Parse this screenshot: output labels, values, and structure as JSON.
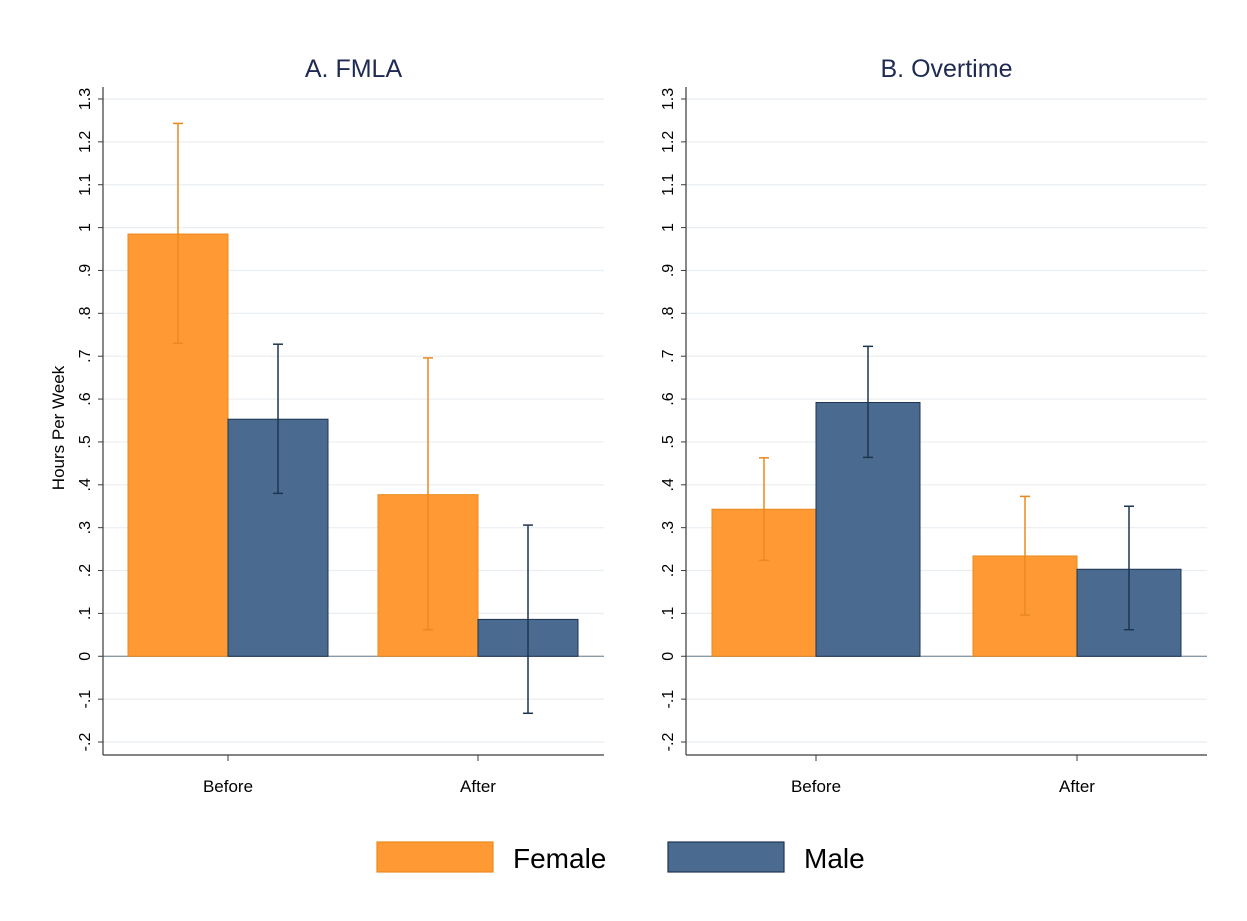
{
  "colors": {
    "female": "#ff9933",
    "female_edge": "#e88a1e",
    "male": "#4a6b8f",
    "male_edge": "#1e3550",
    "grid": "#e8eef2",
    "axis": "#3a3a3a",
    "title": "#1e2a52"
  },
  "y_axis_label": "Hours Per Week",
  "legend": [
    {
      "label": "Female",
      "series": "female"
    },
    {
      "label": "Male",
      "series": "male"
    }
  ],
  "chart_data": [
    {
      "type": "bar",
      "title": "A. FMLA",
      "categories": [
        "Before",
        "After"
      ],
      "ylabel": "Hours Per Week",
      "ylim": [
        -0.2,
        1.3
      ],
      "yticks": [
        "-.2",
        "-.1",
        "0",
        ".1",
        ".2",
        ".3",
        ".4",
        ".5",
        ".6",
        ".7",
        ".8",
        ".9",
        "1",
        "1.1",
        "1.2",
        "1.3"
      ],
      "grid": true,
      "legend_position": "bottom",
      "series": [
        {
          "name": "Female",
          "values": [
            0.985,
            0.377
          ],
          "ci_low": [
            0.73,
            0.062
          ],
          "ci_high": [
            1.243,
            0.696
          ]
        },
        {
          "name": "Male",
          "values": [
            0.553,
            0.086
          ],
          "ci_low": [
            0.38,
            -0.133
          ],
          "ci_high": [
            0.728,
            0.306
          ]
        }
      ]
    },
    {
      "type": "bar",
      "title": "B. Overtime",
      "categories": [
        "Before",
        "After"
      ],
      "ylabel": "",
      "ylim": [
        -0.2,
        1.3
      ],
      "yticks": [
        "-.2",
        "-.1",
        "0",
        ".1",
        ".2",
        ".3",
        ".4",
        ".5",
        ".6",
        ".7",
        ".8",
        ".9",
        "1",
        "1.1",
        "1.2",
        "1.3"
      ],
      "grid": true,
      "legend_position": "bottom",
      "series": [
        {
          "name": "Female",
          "values": [
            0.343,
            0.234
          ],
          "ci_low": [
            0.224,
            0.096
          ],
          "ci_high": [
            0.463,
            0.373
          ]
        },
        {
          "name": "Male",
          "values": [
            0.592,
            0.203
          ],
          "ci_low": [
            0.464,
            0.062
          ],
          "ci_high": [
            0.723,
            0.35
          ]
        }
      ]
    }
  ]
}
